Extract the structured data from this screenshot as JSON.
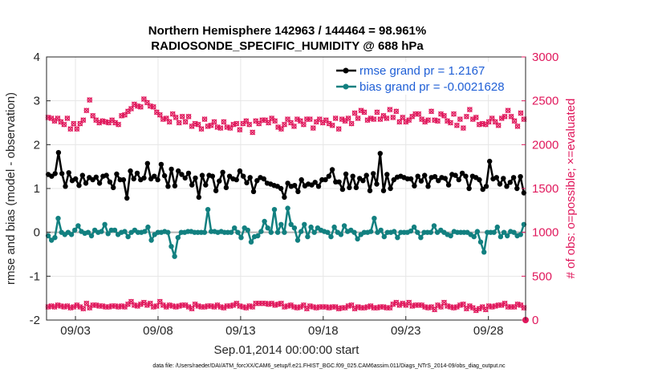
{
  "chart_data": {
    "type": "line",
    "title_line1": "Northern Hemisphere 142963 / 144464 = 98.961%",
    "title_line2": "RADIOSONDE_SPECIFIC_HUMIDITY @ 688 hPa",
    "xlabel": "Sep.01,2014 00:00:00 start",
    "ylabel_left": "rmse and bias (model - observation)",
    "ylabel_right": "# of obs: o=possible; ×=evaluated",
    "footnote": "data file: /Users/raeder/DAI/ATM_forcXX/CAM6_setup/f.e21.FHIST_BGC.f09_025.CAM6assim.011/Diags_NTrS_2014-09/obs_diag_output.nc",
    "x_tick_labels": [
      "09/03",
      "09/08",
      "09/13",
      "09/18",
      "09/23",
      "09/28"
    ],
    "x_tick_days": [
      3,
      8,
      13,
      18,
      23,
      28
    ],
    "xlim_days": [
      1.25,
      30.25
    ],
    "ylim_left": [
      -2,
      4
    ],
    "yticks_left": [
      "-2",
      "-1",
      "0",
      "1",
      "2",
      "3",
      "4"
    ],
    "ylim_right": [
      0,
      3000
    ],
    "yticks_right": [
      "0",
      "500",
      "1000",
      "1500",
      "2000",
      "2500",
      "3000"
    ],
    "grid": true,
    "legend_position": "top-right",
    "colors": {
      "rmse": "#000000",
      "bias": "#128080",
      "obs": "#e0185c",
      "legend_text": "#1f5fd6",
      "zero_line": "#b3b3b3",
      "grid": "#e6e6e6"
    },
    "series": [
      {
        "name": "rmse grand pr = 1.2167",
        "key": "rmse",
        "values": [
          1.32,
          1.28,
          1.34,
          1.82,
          1.34,
          1.05,
          1.36,
          1.18,
          1.22,
          1.07,
          1.3,
          1.12,
          1.25,
          1.2,
          1.26,
          1.12,
          1.28,
          1.3,
          1.15,
          1.02,
          1.33,
          1.2,
          1.2,
          0.78,
          1.4,
          1.22,
          1.35,
          1.2,
          1.24,
          1.57,
          1.22,
          1.28,
          1.2,
          1.55,
          1.29,
          1.05,
          1.44,
          1.06,
          1.4,
          1.32,
          1.24,
          1.35,
          1.08,
          1.24,
          0.8,
          1.3,
          1.08,
          1.3,
          1.28,
          0.95,
          1.17,
          1.37,
          1.02,
          1.28,
          1.22,
          1.2,
          1.4,
          1.28,
          1.13,
          1.25,
          0.93,
          1.18,
          1.25,
          1.22,
          1.12,
          1.1,
          1.07,
          1.05,
          1.0,
          0.8,
          1.12,
          1.05,
          1.07,
          0.93,
          1.2,
          1.06,
          1.1,
          1.08,
          1.14,
          1.05,
          1.2,
          1.2,
          1.28,
          1.43,
          1.15,
          1.15,
          0.98,
          1.33,
          1.02,
          1.28,
          1.02,
          1.23,
          1.18,
          1.3,
          0.95,
          1.34,
          1.1,
          1.8,
          0.95,
          1.32,
          1.0,
          1.2,
          1.26,
          1.28,
          1.25,
          1.22,
          1.22,
          1.06,
          1.28,
          1.17,
          1.3,
          1.05,
          1.25,
          1.27,
          1.18,
          1.25,
          1.23,
          1.08,
          1.32,
          1.3,
          1.2,
          1.35,
          1.28,
          1.0,
          1.28,
          1.25,
          1.2,
          0.98,
          1.05,
          1.62,
          1.22,
          1.25,
          1.1,
          1.23,
          1.05,
          1.14,
          1.25,
          1.0,
          1.27,
          0.9
        ]
      },
      {
        "name": "bias grand pr = -0.0021628",
        "key": "bias",
        "values": [
          -0.08,
          -0.18,
          -0.12,
          0.32,
          0.0,
          -0.05,
          0.0,
          -0.05,
          0.05,
          0.15,
          0.02,
          -0.02,
          0.0,
          -0.08,
          0.05,
          0.0,
          0.02,
          0.18,
          -0.03,
          0.05,
          0.05,
          -0.05,
          0.0,
          0.02,
          -0.1,
          0.0,
          0.05,
          0.0,
          0.0,
          0.02,
          0.12,
          -0.18,
          -0.05,
          0.0,
          0.0,
          0.02,
          0.0,
          -0.32,
          -0.55,
          -0.12,
          0.0,
          0.0,
          0.02,
          0.02,
          0.0,
          0.0,
          0.0,
          0.0,
          0.52,
          0.02,
          0.02,
          0.0,
          0.02,
          0.0,
          0.0,
          0.0,
          0.1,
          0.0,
          -0.12,
          0.1,
          0.05,
          -0.22,
          -0.1,
          -0.08,
          0.02,
          0.25,
          0.1,
          0.0,
          0.52,
          0.0,
          0.18,
          0.0,
          0.55,
          0.18,
          0.1,
          -0.18,
          0.02,
          0.18,
          -0.1,
          0.12,
          0.0,
          0.1,
          0.05,
          0.02,
          0.0,
          -0.1,
          0.12,
          0.0,
          -0.05,
          0.15,
          0.02,
          0.05,
          0.0,
          -0.15,
          -0.05,
          0.0,
          0.0,
          0.02,
          0.32,
          0.0,
          0.05,
          -0.1,
          0.0,
          0.0,
          0.02,
          -0.12,
          0.0,
          0.0,
          0.0,
          0.03,
          0.12,
          0.0,
          -0.12,
          0.0,
          0.0,
          0.0,
          0.15,
          0.0,
          0.05,
          0.0,
          -0.05,
          -0.08,
          0.02,
          0.0,
          0.0,
          0.0,
          0.0,
          -0.05,
          -0.1,
          0.02,
          -0.22,
          -0.45,
          0.0,
          0.0,
          0.0,
          0.12,
          -0.1,
          0.0,
          -0.08,
          0.02,
          0.0,
          -0.08,
          -0.05,
          0.18
        ]
      },
      {
        "name": "obs possible",
        "key": "obs",
        "axis": "right",
        "values": [
          2310,
          2300,
          2270,
          2300,
          2260,
          2230,
          2300,
          2180,
          2240,
          2180,
          2240,
          2280,
          2390,
          2510,
          2330,
          2280,
          2250,
          2270,
          2260,
          2250,
          2280,
          2250,
          2230,
          2330,
          2340,
          2380,
          2410,
          2460,
          2440,
          2430,
          2520,
          2480,
          2440,
          2430,
          2370,
          2340,
          2290,
          2300,
          2260,
          2350,
          2310,
          2250,
          2320,
          2260,
          2320,
          2210,
          2240,
          2230,
          2180,
          2290,
          2210,
          2220,
          2260,
          2200,
          2190,
          2260,
          2200,
          2190,
          2230,
          2240,
          2170,
          2240,
          2270,
          2230,
          2140,
          2270,
          2240,
          2280,
          2280,
          2250,
          2300,
          2270,
          2200,
          2180,
          2230,
          2290,
          2250,
          2210,
          2290,
          2270,
          2230,
          2290,
          2290,
          2190,
          2260,
          2290,
          2250,
          2280,
          2240,
          2220,
          2300,
          2180,
          2290,
          2270,
          2300,
          2240,
          2360,
          2300,
          2390,
          2370,
          2280,
          2300,
          2290,
          2370,
          2290,
          2330,
          2300,
          2400,
          2310,
          2380,
          2260,
          2310,
          2260,
          2280,
          2320,
          2350,
          2350,
          2290,
          2260,
          2280,
          2380,
          2280,
          2270,
          2350,
          2330,
          2270,
          2250,
          2350,
          2220,
          2290,
          2190,
          2320,
          2400,
          2290,
          2310,
          2230,
          2240,
          2230,
          2260,
          2300,
          2260,
          2220,
          2300,
          2320,
          2390,
          2320,
          2270,
          2210,
          2360,
          2290
        ]
      },
      {
        "name": "obs evaluated",
        "key": "obs",
        "axis": "right",
        "values": [
          150,
          160,
          150,
          170,
          160,
          150,
          160,
          140,
          150,
          170,
          150,
          130,
          190,
          140,
          170,
          170,
          160,
          160,
          150,
          150,
          160,
          160,
          150,
          160,
          150,
          180,
          210,
          170,
          160,
          180,
          200,
          170,
          190,
          150,
          160,
          210,
          170,
          150,
          170,
          160,
          150,
          160,
          170,
          170,
          150,
          130,
          180,
          160,
          150,
          150,
          160,
          160,
          150,
          170,
          150,
          140,
          160,
          160,
          170,
          190,
          160,
          150,
          140,
          160,
          150,
          190,
          190,
          190,
          190,
          180,
          190,
          170,
          180,
          190,
          150,
          160,
          170,
          150,
          140,
          150,
          170,
          130,
          160,
          150,
          140,
          150,
          150,
          150,
          140,
          150,
          150,
          130,
          140,
          140,
          160,
          170,
          130,
          150,
          140,
          140,
          150,
          160,
          140,
          140,
          150,
          150,
          140,
          140,
          180,
          200,
          170,
          190,
          170,
          200,
          160,
          170,
          170,
          170,
          150,
          140,
          150,
          120,
          170,
          150,
          200,
          160,
          150,
          140,
          150,
          170,
          180,
          130,
          160,
          140,
          110,
          130,
          150,
          120,
          160,
          150,
          160,
          170,
          170,
          190,
          150,
          150,
          150,
          180,
          170,
          140
        ]
      }
    ],
    "last_evaluated_value": 0
  }
}
